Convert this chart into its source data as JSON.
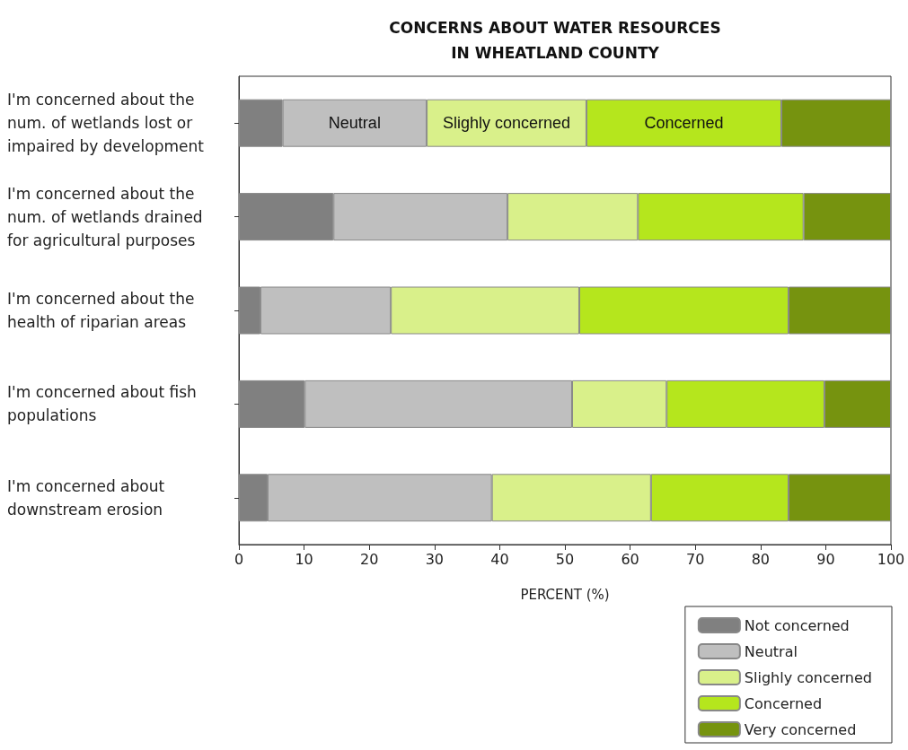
{
  "chart_data": {
    "type": "bar",
    "orientation": "horizontal",
    "stacked": true,
    "title": "CONCERNS ABOUT WATER RESOURCES\nIN WHEATLAND COUNTY",
    "xlabel": "PERCENT (%)",
    "categories": [
      "I'm concerned about the num. of wetlands lost or impaired by development",
      "I'm concerned about the num. of wetlands drained for agricultural purposes",
      "I'm concerned about the health of riparian areas",
      "I'm concerned about fish populations",
      "I'm concerned about downstream erosion"
    ],
    "series": [
      {
        "name": "Not concerned",
        "color": "#808080",
        "values": [
          6.7,
          14.5,
          3.3,
          10.1,
          4.4
        ]
      },
      {
        "name": "Neutral",
        "color": "#bfbfbf",
        "values": [
          22.1,
          26.7,
          20.0,
          41.0,
          34.4
        ],
        "value_labels": [
          "Neutral",
          null,
          null,
          null,
          null
        ]
      },
      {
        "name": "Slighly concerned",
        "color": "#d9f08a",
        "values": [
          24.5,
          20.0,
          28.9,
          14.5,
          24.4
        ],
        "value_labels": [
          "Slighly concerned",
          null,
          null,
          null,
          null
        ]
      },
      {
        "name": "Concerned",
        "color": "#b5e61d",
        "values": [
          29.9,
          25.4,
          32.1,
          24.2,
          21.1
        ],
        "value_labels": [
          "Concerned",
          null,
          null,
          null,
          null
        ]
      },
      {
        "name": "Very concerned",
        "color": "#76930f",
        "values": [
          16.8,
          13.4,
          15.7,
          10.2,
          15.7
        ]
      }
    ],
    "xlim": [
      0,
      100
    ],
    "xticks": [
      0,
      10,
      20,
      30,
      40,
      50,
      60,
      70,
      80,
      90,
      100
    ],
    "grid": false,
    "legend": "bottom right"
  }
}
